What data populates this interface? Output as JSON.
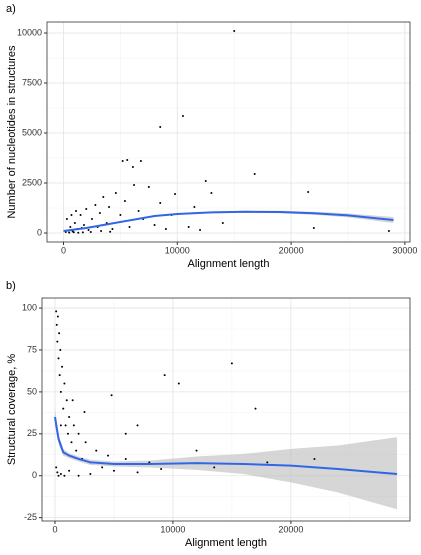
{
  "chart_data": [
    {
      "type": "scatter",
      "panel_label": "a)",
      "xlabel": "Alignment length",
      "ylabel": "Number of nucleotides in structures",
      "xlim": [
        -1450,
        30450
      ],
      "ylim": [
        -450,
        10550
      ],
      "xticks": [
        0,
        10000,
        20000,
        30000
      ],
      "yticks": [
        0,
        2500,
        5000,
        7500,
        10000
      ],
      "minor_xticks": [
        5000,
        15000,
        25000
      ],
      "minor_yticks": [
        1250,
        3750,
        6250,
        8750
      ],
      "grid": true,
      "point_color": "#000000",
      "points": {
        "x": [
          200,
          400,
          600,
          800,
          1000,
          1200,
          1500,
          1800,
          2000,
          2200,
          2500,
          2800,
          3000,
          3200,
          3500,
          3800,
          4000,
          4300,
          4600,
          5000,
          5400,
          5800,
          6200,
          6600,
          7000,
          7500,
          8000,
          8500,
          9000,
          9500,
          11000,
          11500,
          12000,
          14000,
          300,
          700,
          1100,
          1600,
          2400,
          3300,
          4100,
          500,
          900,
          1300,
          1700,
          15000,
          8500,
          10500,
          5200,
          5600,
          6800,
          6100,
          16800,
          12500,
          21500,
          9800,
          13000,
          28600,
          22000
        ],
        "y": [
          50,
          120,
          300,
          80,
          500,
          200,
          900,
          400,
          1200,
          150,
          700,
          1400,
          300,
          1000,
          1800,
          500,
          1300,
          200,
          2000,
          900,
          1600,
          300,
          2400,
          1100,
          700,
          2300,
          400,
          1500,
          200,
          900,
          300,
          1300,
          150,
          500,
          700,
          900,
          1100,
          250,
          50,
          100,
          60,
          20,
          40,
          10,
          30,
          10100,
          5300,
          5850,
          3600,
          3650,
          3600,
          3300,
          2950,
          2600,
          2050,
          1950,
          2000,
          100,
          250
        ]
      },
      "smooth": {
        "color": "#3366e6",
        "band_color": "#bbbbbb",
        "x": [
          0,
          2000,
          4000,
          6000,
          8000,
          10000,
          13000,
          16000,
          19000,
          22000,
          25000,
          29000
        ],
        "y": [
          100,
          250,
          450,
          650,
          850,
          950,
          1030,
          1060,
          1050,
          990,
          880,
          650
        ],
        "lower": [
          70,
          225,
          425,
          620,
          815,
          910,
          985,
          1010,
          990,
          915,
          780,
          500
        ],
        "upper": [
          130,
          275,
          475,
          680,
          885,
          990,
          1075,
          1110,
          1110,
          1065,
          980,
          800
        ]
      }
    },
    {
      "type": "scatter",
      "panel_label": "b)",
      "xlabel": "Alignment length",
      "ylabel": "Structural coverage, %",
      "xlim": [
        -1100,
        30100
      ],
      "ylim": [
        -27,
        106
      ],
      "xticks": [
        0,
        10000,
        20000
      ],
      "yticks": [
        -25,
        0,
        25,
        50,
        75,
        100
      ],
      "minor_xticks": [
        5000,
        15000,
        25000
      ],
      "minor_yticks": [
        -12.5,
        12.5,
        37.5,
        62.5,
        87.5
      ],
      "grid": true,
      "point_color": "#000000",
      "points": {
        "x": [
          100,
          150,
          200,
          250,
          300,
          350,
          400,
          450,
          500,
          600,
          700,
          800,
          900,
          1000,
          1100,
          1200,
          1400,
          1600,
          1800,
          2000,
          2300,
          2600,
          3000,
          3500,
          4000,
          4500,
          5000,
          6000,
          7000,
          8000,
          9000,
          100,
          200,
          300,
          500,
          800,
          1200,
          2000,
          3000,
          500,
          1500,
          2500,
          6000,
          12000,
          13500,
          18000,
          15000,
          10500,
          9300,
          17000,
          4800,
          22000,
          7000
        ],
        "y": [
          98,
          90,
          80,
          95,
          70,
          85,
          60,
          75,
          50,
          65,
          40,
          55,
          30,
          45,
          25,
          35,
          20,
          30,
          15,
          25,
          10,
          20,
          8,
          15,
          5,
          12,
          3,
          10,
          2,
          8,
          4,
          5,
          2,
          0,
          1,
          0,
          3,
          0,
          1,
          30,
          45,
          38,
          25,
          15,
          5,
          8,
          67,
          55,
          60,
          40,
          48,
          10,
          30
        ]
      },
      "smooth": {
        "color": "#3366e6",
        "band_color": "#bbbbbb",
        "x": [
          0,
          300,
          700,
          1200,
          2000,
          3000,
          5000,
          8000,
          12000,
          16000,
          20000,
          24000,
          29000
        ],
        "y": [
          35,
          22,
          14,
          12,
          10,
          8,
          7,
          7,
          7.5,
          7,
          6,
          4,
          1
        ],
        "lower": [
          30,
          19,
          12,
          10.5,
          8.5,
          6.5,
          5.5,
          5,
          3.5,
          1,
          -4,
          -10,
          -20
        ],
        "upper": [
          40,
          25,
          16,
          13.5,
          11.5,
          9.5,
          8.5,
          9,
          11.5,
          13,
          16,
          18,
          23
        ]
      }
    }
  ]
}
